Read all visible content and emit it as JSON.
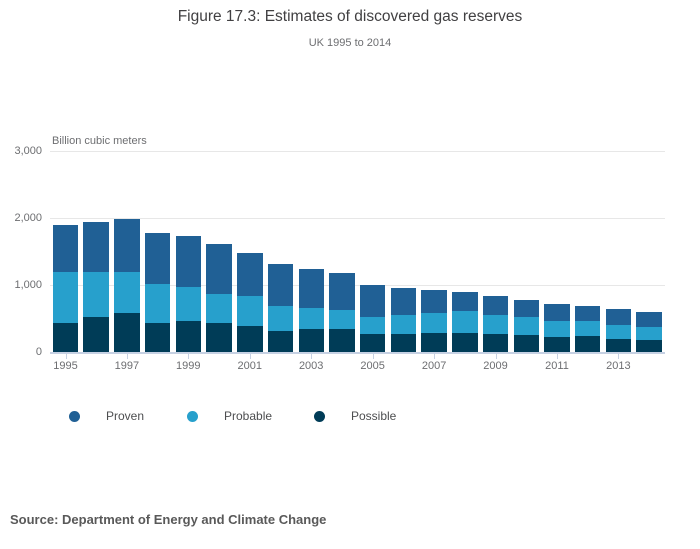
{
  "header": {
    "title": "Figure 17.3: Estimates of discovered gas reserves",
    "subtitle": "UK 1995 to 2014"
  },
  "chart_data": {
    "type": "bar",
    "stacked": true,
    "title": "Figure 17.3: Estimates of discovered gas reserves",
    "subtitle": "UK 1995 to 2014",
    "unit_label": "Billion cubic meters",
    "categories": [
      "1995",
      "1996",
      "1997",
      "1998",
      "1999",
      "2000",
      "2001",
      "2002",
      "2003",
      "2004",
      "2005",
      "2006",
      "2007",
      "2008",
      "2009",
      "2010",
      "2011",
      "2012",
      "2013",
      "2014"
    ],
    "x_axis_labels_shown": [
      "1995",
      "1997",
      "1999",
      "2001",
      "2003",
      "2005",
      "2007",
      "2009",
      "2011",
      "2013"
    ],
    "series": [
      {
        "name": "Proven",
        "color": "#206095",
        "values": [
          700,
          740,
          780,
          770,
          760,
          740,
          640,
          630,
          590,
          550,
          470,
          410,
          330,
          280,
          280,
          250,
          250,
          230,
          240,
          220
        ]
      },
      {
        "name": "Probable",
        "color": "#27A0CC",
        "values": [
          770,
          680,
          620,
          570,
          500,
          440,
          450,
          380,
          310,
          290,
          260,
          280,
          310,
          330,
          280,
          270,
          240,
          220,
          210,
          200
        ]
      },
      {
        "name": "Possible",
        "color": "#003C57",
        "values": [
          430,
          520,
          580,
          440,
          470,
          430,
          390,
          310,
          340,
          340,
          270,
          270,
          280,
          280,
          270,
          260,
          220,
          240,
          190,
          180
        ]
      }
    ],
    "stack_order_bottom_to_top": [
      "Possible",
      "Probable",
      "Proven"
    ],
    "ylim": [
      0,
      3000
    ],
    "yticks": [
      {
        "value": 0,
        "label": "0"
      },
      {
        "value": 1000,
        "label": "1,000"
      },
      {
        "value": 2000,
        "label": "2,000"
      },
      {
        "value": 3000,
        "label": "3,000"
      }
    ],
    "grid": true,
    "legend_position": "bottom"
  },
  "legend": {
    "items": [
      {
        "label": "Proven",
        "color": "#206095"
      },
      {
        "label": "Probable",
        "color": "#27A0CC"
      },
      {
        "label": "Possible",
        "color": "#003C57"
      }
    ]
  },
  "source": {
    "text": "Source: Department of Energy and Climate Change"
  },
  "colors": {
    "proven": "#206095",
    "probable": "#27A0CC",
    "possible": "#003C57",
    "axis_line": "#C6D1E3",
    "gridline": "#E7E7E7"
  }
}
